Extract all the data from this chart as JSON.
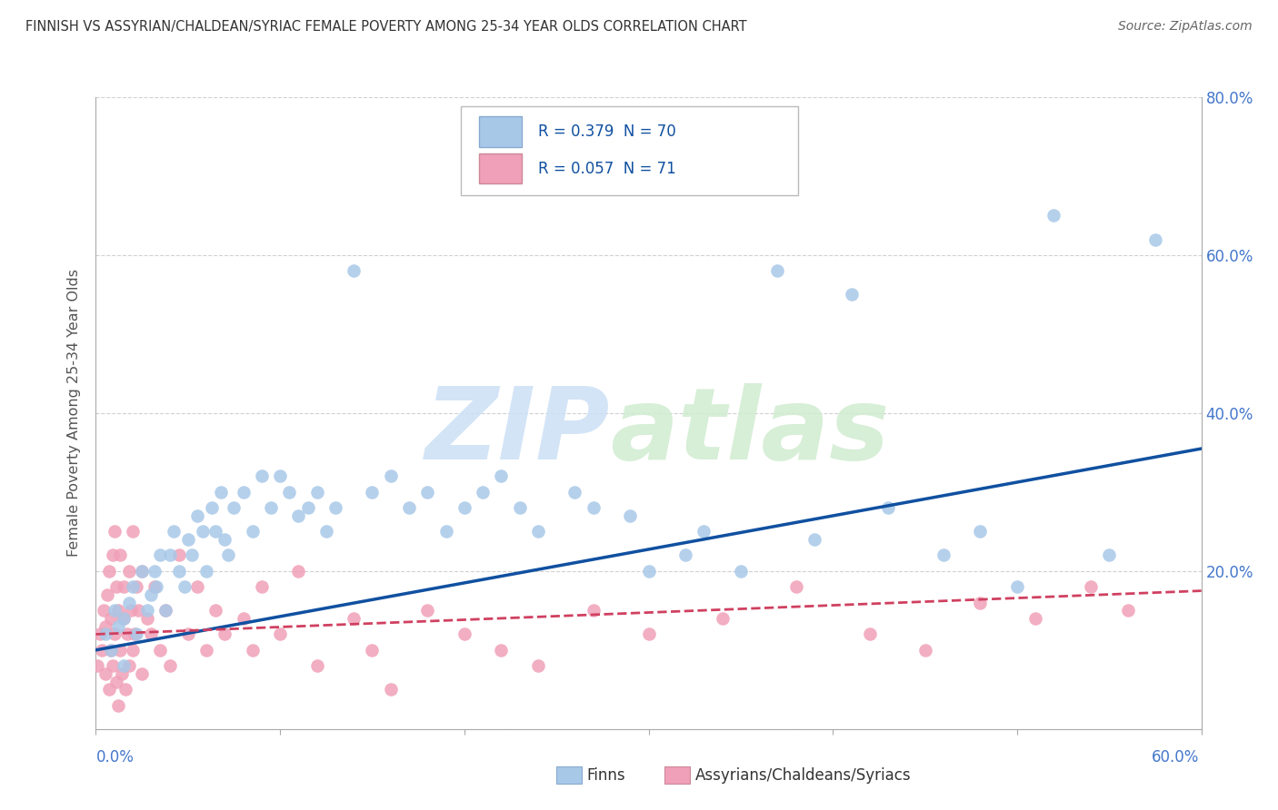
{
  "title": "FINNISH VS ASSYRIAN/CHALDEAN/SYRIAC FEMALE POVERTY AMONG 25-34 YEAR OLDS CORRELATION CHART",
  "source": "Source: ZipAtlas.com",
  "ylabel": "Female Poverty Among 25-34 Year Olds",
  "xmin": 0.0,
  "xmax": 0.6,
  "ymin": 0.0,
  "ymax": 0.8,
  "yticks": [
    0.0,
    0.2,
    0.4,
    0.6,
    0.8
  ],
  "ytick_labels": [
    "",
    "20.0%",
    "40.0%",
    "60.0%",
    "80.0%"
  ],
  "xtick_positions": [
    0.0,
    0.1,
    0.2,
    0.3,
    0.4,
    0.5,
    0.6
  ],
  "finn_color": "#a8c8e8",
  "assyrian_color": "#f0a0b8",
  "finn_line_color": "#1050a0",
  "assyrian_line_color": "#d04060",
  "legend_finn_text": "R = 0.379  N = 70",
  "legend_ass_text": "R = 0.057  N = 71",
  "legend_label_finns": "Finns",
  "legend_label_assyrians": "Assyrians/Chaldeans/Syriacs",
  "background_color": "#ffffff",
  "grid_color": "#cccccc",
  "title_color": "#333333",
  "tick_label_color": "#4477cc",
  "watermark_zip_color": "#cce0f5",
  "watermark_atlas_color": "#d0ecd0",
  "finns_x": [
    0.005,
    0.008,
    0.01,
    0.012,
    0.015,
    0.015,
    0.018,
    0.02,
    0.022,
    0.025,
    0.028,
    0.03,
    0.032,
    0.033,
    0.035,
    0.038,
    0.04,
    0.042,
    0.045,
    0.048,
    0.05,
    0.052,
    0.055,
    0.058,
    0.06,
    0.063,
    0.065,
    0.068,
    0.07,
    0.072,
    0.075,
    0.08,
    0.085,
    0.09,
    0.095,
    0.1,
    0.105,
    0.11,
    0.115,
    0.12,
    0.125,
    0.13,
    0.14,
    0.15,
    0.16,
    0.17,
    0.18,
    0.19,
    0.2,
    0.21,
    0.22,
    0.23,
    0.24,
    0.26,
    0.27,
    0.29,
    0.3,
    0.32,
    0.33,
    0.35,
    0.37,
    0.39,
    0.41,
    0.43,
    0.46,
    0.48,
    0.5,
    0.52,
    0.55,
    0.575
  ],
  "finns_y": [
    0.12,
    0.1,
    0.15,
    0.13,
    0.14,
    0.08,
    0.16,
    0.18,
    0.12,
    0.2,
    0.15,
    0.17,
    0.2,
    0.18,
    0.22,
    0.15,
    0.22,
    0.25,
    0.2,
    0.18,
    0.24,
    0.22,
    0.27,
    0.25,
    0.2,
    0.28,
    0.25,
    0.3,
    0.24,
    0.22,
    0.28,
    0.3,
    0.25,
    0.32,
    0.28,
    0.32,
    0.3,
    0.27,
    0.28,
    0.3,
    0.25,
    0.28,
    0.58,
    0.3,
    0.32,
    0.28,
    0.3,
    0.25,
    0.28,
    0.3,
    0.32,
    0.28,
    0.25,
    0.3,
    0.28,
    0.27,
    0.2,
    0.22,
    0.25,
    0.2,
    0.58,
    0.24,
    0.55,
    0.28,
    0.22,
    0.25,
    0.18,
    0.65,
    0.22,
    0.62
  ],
  "assyrians_x": [
    0.001,
    0.002,
    0.003,
    0.004,
    0.005,
    0.005,
    0.006,
    0.007,
    0.007,
    0.008,
    0.008,
    0.009,
    0.009,
    0.01,
    0.01,
    0.011,
    0.011,
    0.012,
    0.012,
    0.013,
    0.013,
    0.014,
    0.015,
    0.015,
    0.016,
    0.017,
    0.018,
    0.018,
    0.019,
    0.02,
    0.02,
    0.021,
    0.022,
    0.023,
    0.025,
    0.025,
    0.028,
    0.03,
    0.032,
    0.035,
    0.038,
    0.04,
    0.045,
    0.05,
    0.055,
    0.06,
    0.065,
    0.07,
    0.08,
    0.085,
    0.09,
    0.1,
    0.11,
    0.12,
    0.14,
    0.15,
    0.16,
    0.18,
    0.2,
    0.22,
    0.24,
    0.27,
    0.3,
    0.34,
    0.38,
    0.42,
    0.45,
    0.48,
    0.51,
    0.54,
    0.56
  ],
  "assyrians_y": [
    0.08,
    0.12,
    0.1,
    0.15,
    0.07,
    0.13,
    0.17,
    0.05,
    0.2,
    0.1,
    0.14,
    0.08,
    0.22,
    0.12,
    0.25,
    0.06,
    0.18,
    0.03,
    0.15,
    0.1,
    0.22,
    0.07,
    0.14,
    0.18,
    0.05,
    0.12,
    0.2,
    0.08,
    0.15,
    0.1,
    0.25,
    0.12,
    0.18,
    0.15,
    0.2,
    0.07,
    0.14,
    0.12,
    0.18,
    0.1,
    0.15,
    0.08,
    0.22,
    0.12,
    0.18,
    0.1,
    0.15,
    0.12,
    0.14,
    0.1,
    0.18,
    0.12,
    0.2,
    0.08,
    0.14,
    0.1,
    0.05,
    0.15,
    0.12,
    0.1,
    0.08,
    0.15,
    0.12,
    0.14,
    0.18,
    0.12,
    0.1,
    0.16,
    0.14,
    0.18,
    0.15
  ]
}
